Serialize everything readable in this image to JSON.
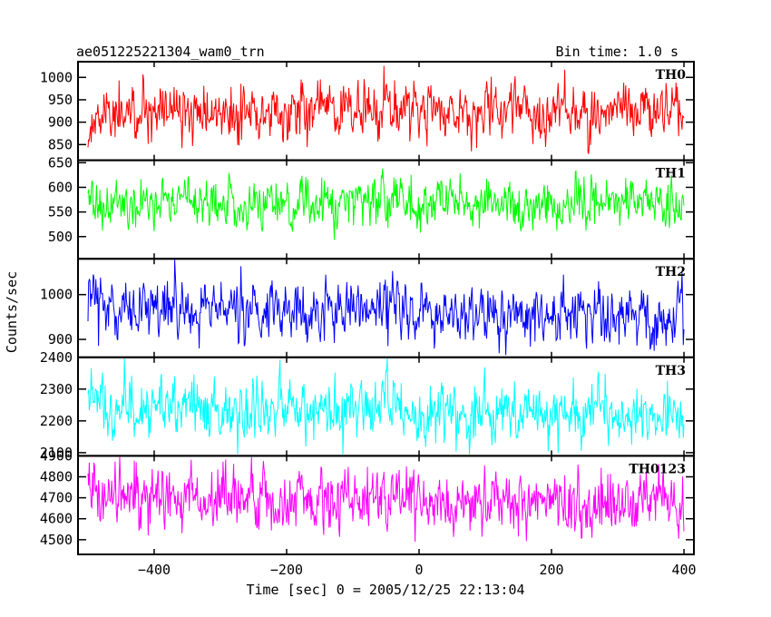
{
  "chart_data": {
    "type": "line",
    "title": "ae051225221304_wam0_trn",
    "subtitle": "Bin time: 1.0 s",
    "xlabel": "Time [sec] 0 = 2005/12/25 22:13:04",
    "ylabel": "Counts/sec",
    "xlim": [
      -515,
      415
    ],
    "x_range": [
      -500,
      400
    ],
    "x_step": 1,
    "xticks": [
      -400,
      -200,
      0,
      200,
      400
    ],
    "xtick_labels": [
      "−400",
      "−200",
      "0",
      "200",
      "400"
    ],
    "grid": false,
    "panels": [
      {
        "name": "TH0",
        "color": "#ff0000",
        "ylim": [
          815,
          1035
        ],
        "yticks": [
          850,
          900,
          950,
          1000
        ],
        "ytick_labels": [
          "850",
          "900",
          "950",
          "1000"
        ],
        "mean_start": 915,
        "mean_end": 930,
        "noise_sd": 30,
        "min": 822,
        "max": 1030
      },
      {
        "name": "TH1",
        "color": "#00ff00",
        "ylim": [
          455,
          655
        ],
        "yticks": [
          500,
          550,
          600,
          650
        ],
        "ytick_labels": [
          "500",
          "550",
          "600",
          "650"
        ],
        "mean_start": 570,
        "mean_end": 568,
        "noise_sd": 24,
        "min": 465,
        "max": 655
      },
      {
        "name": "TH2",
        "color": "#0000ff",
        "ylim": [
          860,
          1080
        ],
        "yticks": [
          900,
          1000
        ],
        "ytick_labels": [
          "900",
          "1000"
        ],
        "mean_start": 975,
        "mean_end": 948,
        "noise_sd": 31,
        "min": 865,
        "max": 1078
      },
      {
        "name": "TH3",
        "color": "#00ffff",
        "ylim": [
          2090,
          2400
        ],
        "yticks": [
          2100,
          2200,
          2300,
          2400
        ],
        "ytick_labels": [
          "2100",
          "2200",
          "2300",
          "2400"
        ],
        "mean_start": 2250,
        "mean_end": 2215,
        "noise_sd": 45,
        "min": 2095,
        "max": 2400
      },
      {
        "name": "TH0123",
        "color": "#ff00ff",
        "ylim": [
          4430,
          4900
        ],
        "yticks": [
          4500,
          4600,
          4700,
          4800,
          4900
        ],
        "ytick_labels": [
          "4500",
          "4600",
          "4700",
          "4800",
          "4900"
        ],
        "mean_start": 4715,
        "mean_end": 4665,
        "noise_sd": 70,
        "min": 4440,
        "max": 4895
      }
    ]
  }
}
